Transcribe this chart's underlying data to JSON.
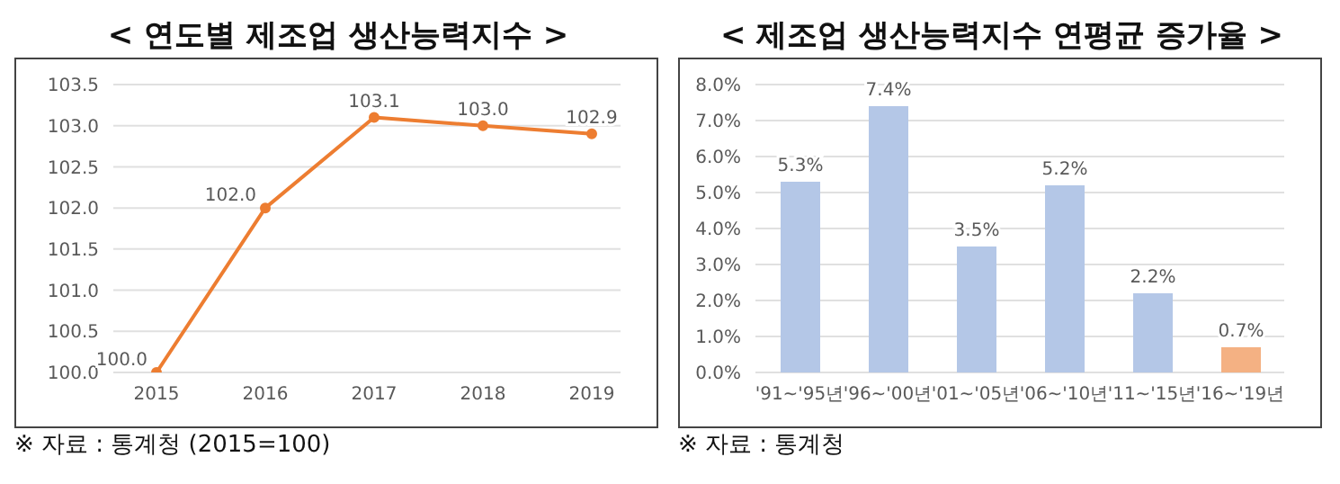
{
  "chart_data": [
    {
      "type": "line",
      "title": "< 연도별 제조업 생산능력지수 >",
      "categories": [
        "2015",
        "2016",
        "2017",
        "2018",
        "2019"
      ],
      "series": [
        {
          "color": "#ed7d31",
          "values": [
            100.0,
            102.0,
            103.1,
            103.0,
            102.9
          ],
          "value_labels": [
            "100.0",
            "102.0",
            "103.1",
            "103.0",
            "102.9"
          ]
        }
      ],
      "ylim": [
        100,
        103.5
      ],
      "yticks": [
        {
          "value": 100,
          "label": "100.0"
        },
        {
          "value": 100.5,
          "label": "100.5"
        },
        {
          "value": 101,
          "label": "101.0"
        },
        {
          "value": 101.5,
          "label": "101.5"
        },
        {
          "value": 102,
          "label": "102.0"
        },
        {
          "value": 102.5,
          "label": "102.5"
        },
        {
          "value": 103,
          "label": "103.0"
        },
        {
          "value": 103.5,
          "label": "103.5"
        }
      ],
      "grid": "y",
      "marker": "circle",
      "line_style": "solid",
      "legend": false,
      "annotations": [
        "※ 자료 : 통계청 (2015=100)"
      ]
    },
    {
      "type": "bar",
      "title": "< 제조업 생산능력지수 연평균 증가율 >",
      "categories": [
        "'91~'95년",
        "'96~'00년",
        "'01~'05년",
        "'06~'10년",
        "'11~'15년",
        "'16~'19년"
      ],
      "values": [
        5.3,
        7.4,
        3.5,
        5.2,
        2.2,
        0.7
      ],
      "colors": [
        "#b4c7e7",
        "#b4c7e7",
        "#b4c7e7",
        "#b4c7e7",
        "#b4c7e7",
        "#f4b183"
      ],
      "value_labels": [
        "5.3%",
        "7.4%",
        "3.5%",
        "5.2%",
        "2.2%",
        "0.7%"
      ],
      "ylim": [
        0,
        8
      ],
      "yticks": [
        {
          "value": 0,
          "label": "0.0%"
        },
        {
          "value": 1,
          "label": "1.0%"
        },
        {
          "value": 2,
          "label": "2.0%"
        },
        {
          "value": 3,
          "label": "3.0%"
        },
        {
          "value": 4,
          "label": "4.0%"
        },
        {
          "value": 5,
          "label": "5.0%"
        },
        {
          "value": 6,
          "label": "6.0%"
        },
        {
          "value": 7,
          "label": "7.0%"
        },
        {
          "value": 8,
          "label": "8.0%"
        }
      ],
      "grid": "y",
      "legend": false,
      "annotations": [
        "※ 자료 : 통계청"
      ]
    }
  ]
}
